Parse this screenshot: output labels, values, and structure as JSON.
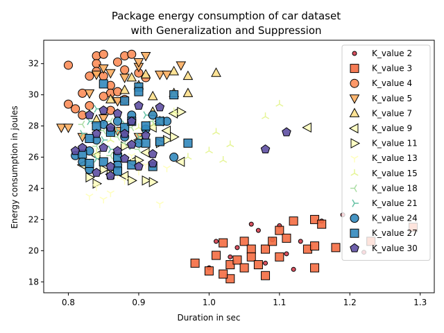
{
  "chart_data": {
    "type": "scatter",
    "title_line1": "Package energy consumption of car dataset",
    "title_line2": "with Generalization and Suppression",
    "xlabel": "Duration in sec",
    "ylabel": "Energy consumption in joules",
    "xlim": [
      0.765,
      1.32
    ],
    "ylim": [
      17.3,
      33.5
    ],
    "xticks": [
      0.8,
      0.9,
      1.0,
      1.1,
      1.2,
      1.3
    ],
    "xtick_labels": [
      "0.8",
      "0.9",
      "1.0",
      "1.1",
      "1.2",
      "1.3"
    ],
    "yticks": [
      18,
      20,
      22,
      24,
      26,
      28,
      30,
      32
    ],
    "ytick_labels": [
      "18",
      "20",
      "22",
      "24",
      "26",
      "28",
      "30",
      "32"
    ],
    "grid": false,
    "legend_position": "right",
    "series": [
      {
        "name": "K_value 2",
        "marker": "dot",
        "color": "#d53e4f",
        "points": [
          [
            1.01,
            20.6
          ],
          [
            1.04,
            20.2
          ],
          [
            1.06,
            21.7
          ],
          [
            1.07,
            21.3
          ],
          [
            1.09,
            20.7
          ],
          [
            1.1,
            21.6
          ],
          [
            1.11,
            19.8
          ],
          [
            1.13,
            20.6
          ],
          [
            1.16,
            21.9
          ],
          [
            1.19,
            22.3
          ],
          [
            1.22,
            19.9
          ],
          [
            1.0,
            18.9
          ],
          [
            1.03,
            19.6
          ],
          [
            1.08,
            19.2
          ],
          [
            1.12,
            18.8
          ]
        ]
      },
      {
        "name": "K_value 3",
        "marker": "square",
        "color": "#f46d43",
        "points": [
          [
            0.98,
            19.2
          ],
          [
            1.0,
            18.7
          ],
          [
            1.01,
            19.7
          ],
          [
            1.02,
            20.5
          ],
          [
            1.03,
            19.1
          ],
          [
            1.03,
            18.2
          ],
          [
            1.04,
            19.4
          ],
          [
            1.05,
            20.6
          ],
          [
            1.05,
            18.9
          ],
          [
            1.06,
            20.1
          ],
          [
            1.06,
            19.6
          ],
          [
            1.07,
            19.1
          ],
          [
            1.08,
            20.1
          ],
          [
            1.08,
            18.4
          ],
          [
            1.09,
            20.6
          ],
          [
            1.1,
            21.3
          ],
          [
            1.1,
            19.6
          ],
          [
            1.11,
            20.8
          ],
          [
            1.12,
            21.9
          ],
          [
            1.14,
            20.1
          ],
          [
            1.15,
            22.0
          ],
          [
            1.15,
            20.3
          ],
          [
            1.16,
            21.7
          ],
          [
            1.18,
            20.2
          ],
          [
            1.23,
            20.6
          ],
          [
            1.29,
            21.5
          ],
          [
            1.15,
            18.9
          ],
          [
            1.02,
            18.5
          ]
        ]
      },
      {
        "name": "K_value 4",
        "marker": "circle",
        "color": "#fc8d59",
        "points": [
          [
            0.8,
            31.9
          ],
          [
            0.8,
            29.4
          ],
          [
            0.81,
            29.1
          ],
          [
            0.82,
            30.1
          ],
          [
            0.82,
            28.7
          ],
          [
            0.83,
            31.2
          ],
          [
            0.84,
            32.5
          ],
          [
            0.84,
            32.0
          ],
          [
            0.84,
            31.5
          ],
          [
            0.85,
            32.6
          ],
          [
            0.85,
            31.2
          ],
          [
            0.86,
            30.6
          ],
          [
            0.86,
            30.1
          ],
          [
            0.87,
            32.1
          ],
          [
            0.88,
            32.5
          ],
          [
            0.88,
            31.6
          ],
          [
            0.89,
            32.6
          ],
          [
            0.88,
            29.7
          ],
          [
            0.9,
            31.4
          ],
          [
            0.91,
            31.1
          ],
          [
            0.87,
            30.2
          ],
          [
            0.85,
            29.9
          ],
          [
            0.83,
            29.3
          ],
          [
            0.86,
            29.0
          ]
        ]
      },
      {
        "name": "K_value 5",
        "marker": "triangle-down",
        "color": "#fdae61",
        "points": [
          [
            0.79,
            27.9
          ],
          [
            0.8,
            27.9
          ],
          [
            0.82,
            27.3
          ],
          [
            0.83,
            30.1
          ],
          [
            0.84,
            31.3
          ],
          [
            0.85,
            31.7
          ],
          [
            0.86,
            31.4
          ],
          [
            0.87,
            29.6
          ],
          [
            0.88,
            31.1
          ],
          [
            0.9,
            31.8
          ],
          [
            0.9,
            32.1
          ],
          [
            0.91,
            32.5
          ],
          [
            0.93,
            31.3
          ],
          [
            0.94,
            31.3
          ],
          [
            0.96,
            31.9
          ],
          [
            0.9,
            27.3
          ],
          [
            0.85,
            28.5
          ],
          [
            0.87,
            27.7
          ]
        ]
      },
      {
        "name": "K_value 7",
        "marker": "triangle-up",
        "color": "#fee08b",
        "points": [
          [
            0.86,
            29.7
          ],
          [
            0.88,
            30.3
          ],
          [
            0.89,
            31.1
          ],
          [
            0.9,
            30.6
          ],
          [
            0.91,
            31.3
          ],
          [
            0.92,
            29.9
          ],
          [
            0.95,
            31.5
          ],
          [
            0.95,
            30.1
          ],
          [
            0.97,
            31.2
          ],
          [
            0.97,
            30.1
          ],
          [
            1.01,
            31.4
          ],
          [
            0.92,
            28.9
          ],
          [
            0.93,
            28.3
          ],
          [
            0.84,
            28.4
          ]
        ]
      },
      {
        "name": "K_value 9",
        "marker": "triangle-left",
        "color": "#ffffbf",
        "points": [
          [
            0.82,
            25.5
          ],
          [
            0.84,
            26.1
          ],
          [
            0.86,
            24.9
          ],
          [
            0.87,
            26.3
          ],
          [
            0.89,
            25.7
          ],
          [
            0.91,
            26.3
          ],
          [
            0.92,
            27.9
          ],
          [
            0.93,
            28.3
          ],
          [
            0.94,
            27.7
          ],
          [
            0.95,
            28.8
          ],
          [
            0.96,
            25.7
          ],
          [
            1.14,
            27.9
          ],
          [
            0.9,
            27.1
          ],
          [
            0.88,
            24.8
          ]
        ]
      },
      {
        "name": "K_value 11",
        "marker": "triangle-right",
        "color": "#ffffbf",
        "points": [
          [
            0.83,
            24.7
          ],
          [
            0.84,
            24.3
          ],
          [
            0.86,
            24.9
          ],
          [
            0.88,
            26.7
          ],
          [
            0.89,
            24.5
          ],
          [
            0.91,
            24.5
          ],
          [
            0.92,
            24.4
          ],
          [
            0.93,
            26.9
          ],
          [
            0.94,
            27.1
          ],
          [
            0.95,
            27.3
          ],
          [
            0.96,
            28.9
          ],
          [
            0.87,
            25.9
          ],
          [
            0.9,
            25.8
          ],
          [
            0.85,
            25.2
          ]
        ]
      },
      {
        "name": "K_value 13",
        "marker": "tri-down",
        "color": "#ffffbf",
        "points": [
          [
            0.83,
            23.5
          ],
          [
            0.85,
            23.3
          ],
          [
            0.86,
            23.7
          ],
          [
            0.88,
            24.5
          ],
          [
            0.9,
            25.1
          ],
          [
            0.91,
            25.5
          ],
          [
            0.93,
            23.0
          ],
          [
            0.94,
            25.3
          ],
          [
            0.89,
            26.1
          ],
          [
            0.87,
            24.9
          ],
          [
            0.84,
            24.1
          ]
        ]
      },
      {
        "name": "K_value 15",
        "marker": "tri-up",
        "color": "#e6f598",
        "points": [
          [
            0.82,
            25.9
          ],
          [
            0.84,
            26.3
          ],
          [
            0.86,
            27.1
          ],
          [
            0.88,
            27.7
          ],
          [
            0.9,
            27.9
          ],
          [
            0.92,
            28.1
          ],
          [
            0.95,
            28.9
          ],
          [
            1.0,
            26.4
          ],
          [
            1.01,
            27.6
          ],
          [
            1.02,
            25.8
          ],
          [
            1.03,
            26.8
          ],
          [
            1.08,
            28.6
          ],
          [
            1.1,
            29.4
          ],
          [
            0.97,
            26.0
          ]
        ]
      },
      {
        "name": "K_value 18",
        "marker": "tri-left",
        "color": "#abdda4",
        "points": [
          [
            0.82,
            28.1
          ],
          [
            0.83,
            28.9
          ],
          [
            0.85,
            27.7
          ],
          [
            0.86,
            28.3
          ],
          [
            0.87,
            27.3
          ],
          [
            0.88,
            26.9
          ],
          [
            0.89,
            27.9
          ],
          [
            0.9,
            26.5
          ],
          [
            0.91,
            27.7
          ],
          [
            0.92,
            28.3
          ],
          [
            0.84,
            26.7
          ],
          [
            0.86,
            26.1
          ]
        ]
      },
      {
        "name": "K_value 21",
        "marker": "tri-right",
        "color": "#66c2a5",
        "points": [
          [
            0.82,
            27.5
          ],
          [
            0.83,
            28.3
          ],
          [
            0.84,
            29.1
          ],
          [
            0.85,
            27.1
          ],
          [
            0.87,
            27.7
          ],
          [
            0.88,
            28.1
          ],
          [
            0.89,
            26.7
          ],
          [
            0.9,
            27.3
          ],
          [
            0.91,
            28.7
          ],
          [
            0.86,
            26.5
          ],
          [
            0.84,
            25.9
          ]
        ]
      },
      {
        "name": "K_value 24",
        "marker": "circle",
        "color": "#3288bd",
        "points": [
          [
            0.81,
            26.1
          ],
          [
            0.82,
            25.7
          ],
          [
            0.83,
            26.4
          ],
          [
            0.84,
            27.1
          ],
          [
            0.85,
            28.1
          ],
          [
            0.86,
            27.7
          ],
          [
            0.87,
            28.3
          ],
          [
            0.88,
            27.3
          ],
          [
            0.89,
            28.7
          ],
          [
            0.9,
            26.9
          ],
          [
            0.91,
            27.8
          ],
          [
            0.92,
            28.7
          ],
          [
            0.94,
            28.3
          ],
          [
            0.95,
            26.0
          ],
          [
            0.83,
            25.2
          ],
          [
            0.87,
            25.5
          ]
        ]
      },
      {
        "name": "K_value 27",
        "marker": "square",
        "color": "#3288bd",
        "points": [
          [
            0.82,
            26.2
          ],
          [
            0.83,
            25.6
          ],
          [
            0.83,
            27.2
          ],
          [
            0.84,
            28.0
          ],
          [
            0.85,
            30.7
          ],
          [
            0.86,
            27.6
          ],
          [
            0.87,
            25.1
          ],
          [
            0.87,
            26.0
          ],
          [
            0.88,
            27.9
          ],
          [
            0.88,
            29.6
          ],
          [
            0.89,
            28.3
          ],
          [
            0.89,
            25.5
          ],
          [
            0.9,
            30.5
          ],
          [
            0.9,
            30.2
          ],
          [
            0.91,
            26.9
          ],
          [
            0.92,
            25.4
          ],
          [
            0.93,
            27.0
          ],
          [
            0.93,
            28.3
          ],
          [
            0.95,
            30.0
          ],
          [
            0.97,
            26.9
          ],
          [
            0.85,
            25.7
          ],
          [
            0.91,
            28.0
          ]
        ]
      },
      {
        "name": "K_value 30",
        "marker": "pentagon",
        "color": "#5e4fa2",
        "points": [
          [
            0.81,
            26.4
          ],
          [
            0.82,
            26.6
          ],
          [
            0.83,
            28.7
          ],
          [
            0.84,
            27.5
          ],
          [
            0.84,
            25.0
          ],
          [
            0.85,
            26.6
          ],
          [
            0.85,
            29.0
          ],
          [
            0.86,
            27.9
          ],
          [
            0.86,
            25.4
          ],
          [
            0.87,
            28.8
          ],
          [
            0.87,
            26.4
          ],
          [
            0.88,
            27.5
          ],
          [
            0.88,
            25.9
          ],
          [
            0.89,
            28.3
          ],
          [
            0.89,
            26.8
          ],
          [
            0.9,
            29.3
          ],
          [
            0.9,
            25.4
          ],
          [
            0.91,
            27.4
          ],
          [
            0.92,
            26.2
          ],
          [
            0.93,
            29.2
          ],
          [
            1.08,
            26.5
          ],
          [
            1.11,
            27.6
          ],
          [
            0.86,
            24.8
          ],
          [
            0.92,
            25.6
          ]
        ]
      }
    ]
  }
}
